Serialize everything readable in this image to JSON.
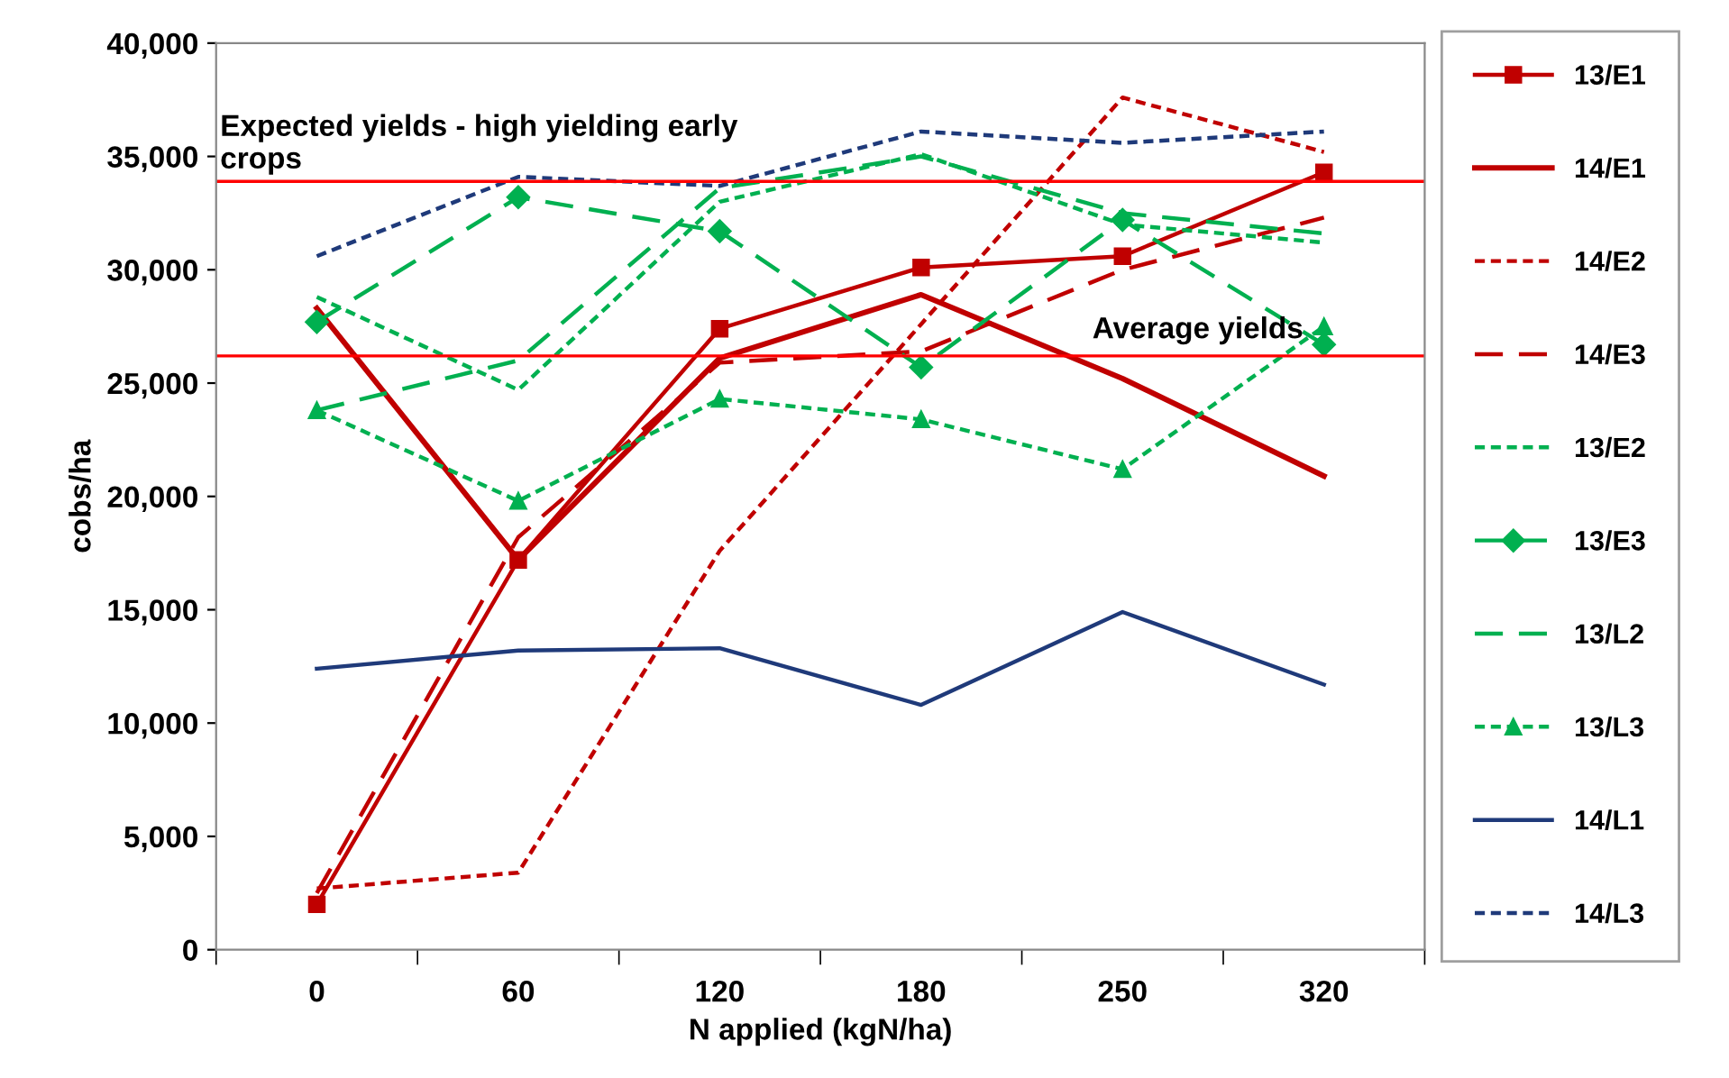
{
  "chart_data": {
    "type": "line",
    "xlabel": "N applied (kgN/ha)",
    "ylabel": "cobs/ha",
    "categories": [
      "0",
      "60",
      "120",
      "180",
      "250",
      "320"
    ],
    "ylim": [
      0,
      40000
    ],
    "yticks": [
      {
        "value": 0,
        "label": "0"
      },
      {
        "value": 5000,
        "label": "5,000"
      },
      {
        "value": 10000,
        "label": "10,000"
      },
      {
        "value": 15000,
        "label": "15,000"
      },
      {
        "value": 20000,
        "label": "20,000"
      },
      {
        "value": 25000,
        "label": "25,000"
      },
      {
        "value": 30000,
        "label": "30,000"
      },
      {
        "value": 35000,
        "label": "35,000"
      },
      {
        "value": 40000,
        "label": "40,000"
      }
    ],
    "grid": false,
    "legend": "right",
    "series": [
      {
        "name": "13/E1",
        "color": "#c00000",
        "marker": "square",
        "line_style": "solid",
        "values": [
          2000,
          17200,
          27400,
          30100,
          30600,
          34300
        ]
      },
      {
        "name": "14/E1",
        "color": "#c00000",
        "marker": "none",
        "line_style": "solid",
        "values": [
          28300,
          17200,
          26100,
          28900,
          25200,
          20900
        ]
      },
      {
        "name": "14/E2",
        "color": "#c00000",
        "marker": "none",
        "line_style": "dotted",
        "values": [
          2700,
          3400,
          17600,
          27600,
          37600,
          35200
        ]
      },
      {
        "name": "14/E3",
        "color": "#c00000",
        "marker": "none",
        "line_style": "dashed",
        "values": [
          2500,
          18200,
          25900,
          26400,
          30000,
          32300
        ]
      },
      {
        "name": "13/E2",
        "color": "#00b050",
        "marker": "none",
        "line_style": "dotted",
        "values": [
          28800,
          24700,
          33000,
          35100,
          32000,
          31200
        ]
      },
      {
        "name": "13/E3",
        "color": "#00b050",
        "marker": "diamond",
        "line_style": "dashed",
        "values": [
          27700,
          33200,
          31700,
          25700,
          32200,
          26700
        ]
      },
      {
        "name": "13/L2",
        "color": "#00b050",
        "marker": "none",
        "line_style": "dashed",
        "values": [
          23800,
          26000,
          33600,
          35000,
          32500,
          31600
        ]
      },
      {
        "name": "13/L3",
        "color": "#00b050",
        "marker": "triangle",
        "line_style": "dotted",
        "values": [
          23800,
          19800,
          24300,
          23400,
          21200,
          27500
        ]
      },
      {
        "name": "14/L1",
        "color": "#1f3a7a",
        "marker": "none",
        "line_style": "solid",
        "values": [
          12400,
          13200,
          13300,
          10800,
          14900,
          11700
        ]
      },
      {
        "name": "14/L3",
        "color": "#1f3a7a",
        "marker": "none",
        "line_style": "dotted",
        "values": [
          30600,
          34100,
          33700,
          36100,
          35600,
          36100
        ]
      }
    ],
    "ref_lines": [
      {
        "axis": "y",
        "value": 33900,
        "label": "Expected yields - high yielding early\ncrops",
        "color": "#ff0000"
      },
      {
        "axis": "y",
        "value": 26200,
        "label": "Average yields",
        "color": "#ff0000"
      }
    ]
  }
}
